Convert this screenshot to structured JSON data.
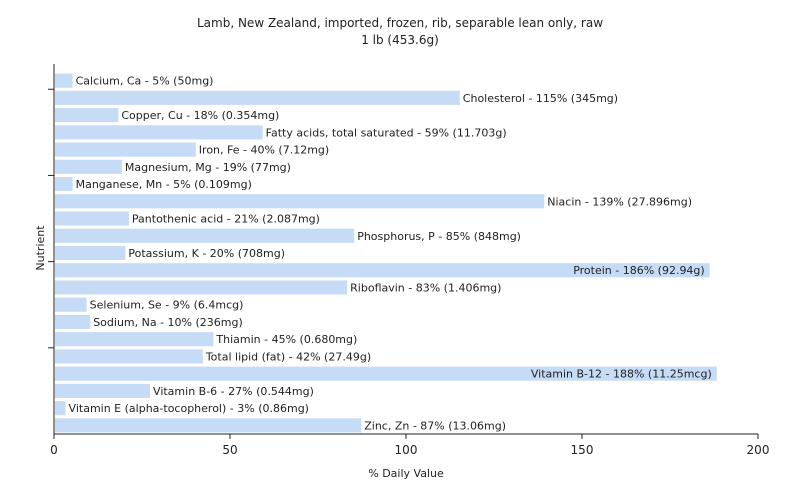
{
  "chart_data": {
    "type": "bar",
    "orientation": "horizontal",
    "title": "Lamb, New Zealand, imported, frozen, rib, separable lean only, raw",
    "subtitle": "1 lb (453.6g)",
    "xlabel": "% Daily Value",
    "ylabel": "Nutrient",
    "xlim": [
      0,
      200
    ],
    "xticks": [
      0,
      50,
      100,
      150,
      200
    ],
    "grid": false,
    "bar_color": "#c6dcf6",
    "categories": [
      "Calcium, Ca",
      "Cholesterol",
      "Copper, Cu",
      "Fatty acids, total saturated",
      "Iron, Fe",
      "Magnesium, Mg",
      "Manganese, Mn",
      "Niacin",
      "Pantothenic acid",
      "Phosphorus, P",
      "Potassium, K",
      "Protein",
      "Riboflavin",
      "Selenium, Se",
      "Sodium, Na",
      "Thiamin",
      "Total lipid (fat)",
      "Vitamin B-12",
      "Vitamin B-6",
      "Vitamin E (alpha-tocopherol)",
      "Zinc, Zn"
    ],
    "values": [
      5,
      115,
      18,
      59,
      40,
      19,
      5,
      139,
      21,
      85,
      20,
      186,
      83,
      9,
      10,
      45,
      42,
      188,
      27,
      3,
      87
    ],
    "data_labels": [
      "Calcium, Ca - 5% (50mg)",
      "Cholesterol - 115% (345mg)",
      "Copper, Cu - 18% (0.354mg)",
      "Fatty acids, total saturated - 59% (11.703g)",
      "Iron, Fe - 40% (7.12mg)",
      "Magnesium, Mg - 19% (77mg)",
      "Manganese, Mn - 5% (0.109mg)",
      "Niacin - 139% (27.896mg)",
      "Pantothenic acid - 21% (2.087mg)",
      "Phosphorus, P - 85% (848mg)",
      "Potassium, K - 20% (708mg)",
      "Protein - 186% (92.94g)",
      "Riboflavin - 83% (1.406mg)",
      "Selenium, Se - 9% (6.4mcg)",
      "Sodium, Na - 10% (236mg)",
      "Thiamin - 45% (0.680mg)",
      "Total lipid (fat) - 42% (27.49g)",
      "Vitamin B-12 - 188% (11.25mcg)",
      "Vitamin B-6 - 27% (0.544mg)",
      "Vitamin E (alpha-tocopherol) - 3% (0.86mg)",
      "Zinc, Zn - 87% (13.06mg)"
    ]
  }
}
